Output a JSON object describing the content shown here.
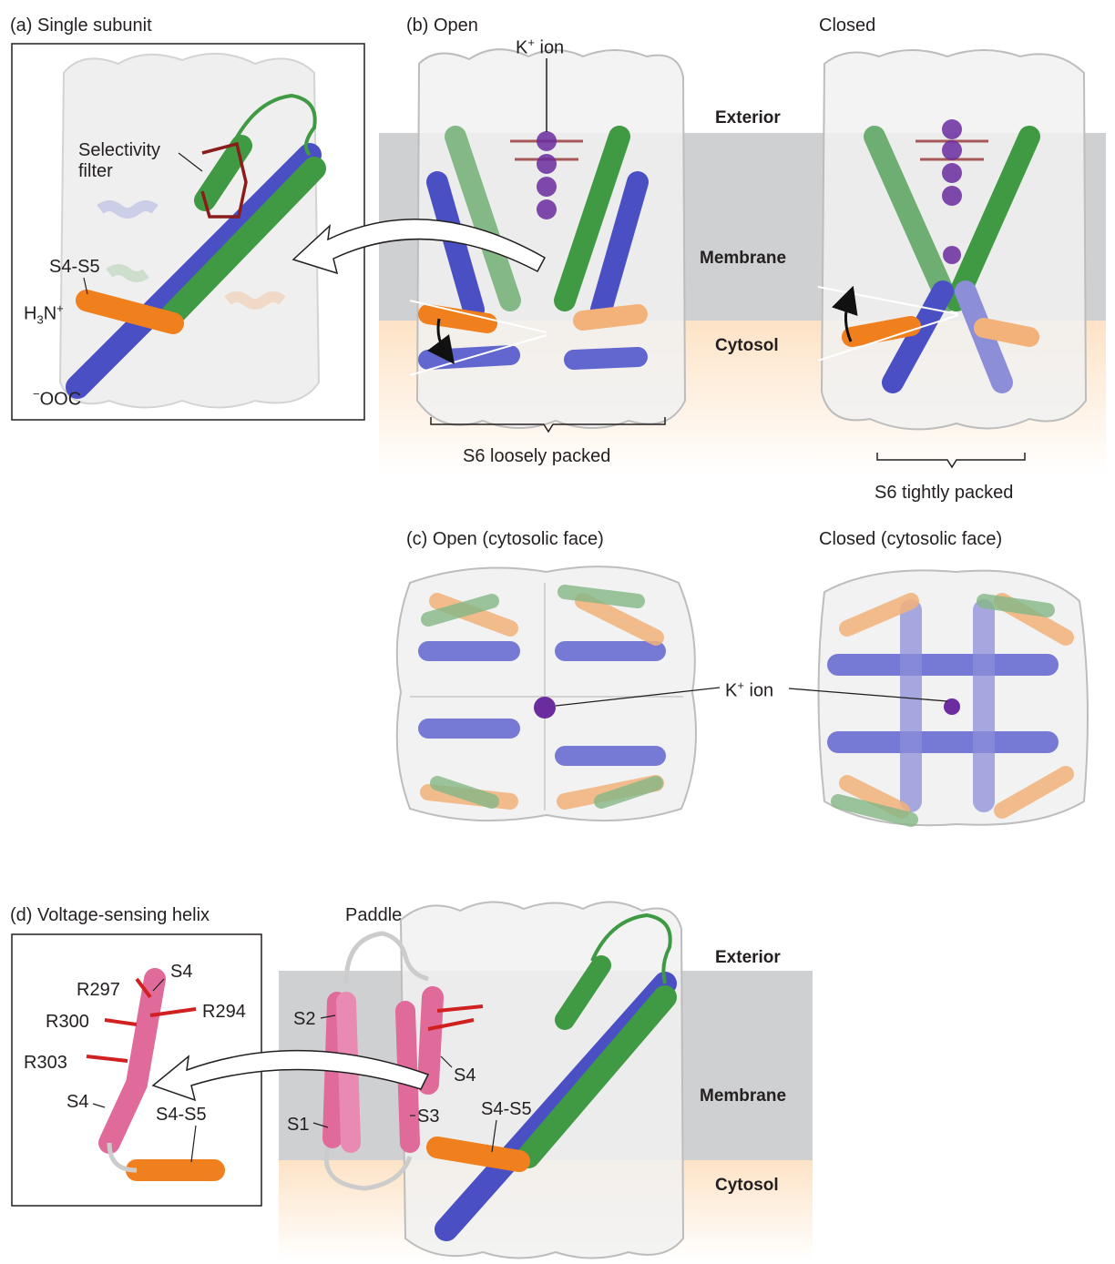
{
  "colors": {
    "membrane": "#cfd0d2",
    "cytosol": "#fde3c6",
    "s6_helix": "#4a4fc4",
    "s5_helix": "#3f9a43",
    "s4_s5_linker": "#f07f1e",
    "voltage_sensor": "#e06a9a",
    "selectivity_filter": "#8a1c1c",
    "k_ion": "#6a2c9e"
  },
  "panel_a": {
    "title": "(a) Single subunit",
    "label_selectivity": "Selectivity",
    "label_filter": "filter",
    "label_s4s5": "S4-S5",
    "label_nterm": "H3N+",
    "label_cterm": "−OOC"
  },
  "panel_b": {
    "title_open": "(b) Open",
    "title_closed": "Closed",
    "k_ion": "K+ ion",
    "exterior": "Exterior",
    "membrane": "Membrane",
    "cytosol": "Cytosol",
    "s6_loose": "S6 loosely packed",
    "s6_tight": "S6 tightly packed"
  },
  "panel_c": {
    "title_open": "(c) Open (cytosolic face)",
    "title_closed": "Closed (cytosolic face)",
    "k_ion": "K+ ion"
  },
  "panel_d": {
    "title": "(d) Voltage-sensing helix",
    "paddle": "Paddle",
    "exterior": "Exterior",
    "membrane": "Membrane",
    "cytosol": "Cytosol",
    "residues": [
      "R297",
      "R300",
      "R294",
      "R303"
    ],
    "s4_top": "S4",
    "s4_bottom": "S4",
    "s4s5_inset": "S4-S5",
    "s1": "S1",
    "s2": "S2",
    "s3": "S3",
    "s4_main": "S4",
    "s4s5_main": "S4-S5"
  }
}
